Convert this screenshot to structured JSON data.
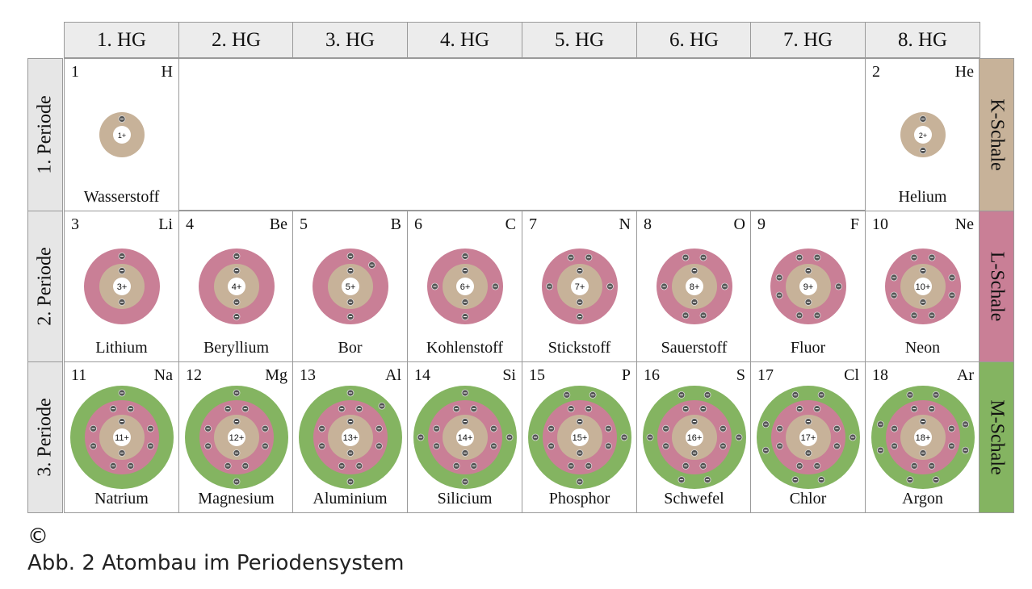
{
  "groups": [
    "1. HG",
    "2. HG",
    "3. HG",
    "4. HG",
    "5. HG",
    "6. HG",
    "7. HG",
    "8. HG"
  ],
  "periods": [
    "1. Periode",
    "2. Periode",
    "3. Periode"
  ],
  "shells": [
    {
      "label": "K-Schale",
      "color": "#c7b299"
    },
    {
      "label": "L-Schale",
      "color": "#c97f96"
    },
    {
      "label": "M-Schale",
      "color": "#84b461"
    }
  ],
  "elements": [
    {
      "z": 1,
      "symbol": "H",
      "name": "Wasserstoff",
      "period": 1,
      "group": 1,
      "charge": "1+",
      "electrons": [
        1
      ]
    },
    {
      "z": 2,
      "symbol": "He",
      "name": "Helium",
      "period": 1,
      "group": 8,
      "charge": "2+",
      "electrons": [
        2
      ]
    },
    {
      "z": 3,
      "symbol": "Li",
      "name": "Lithium",
      "period": 2,
      "group": 1,
      "charge": "3+",
      "electrons": [
        2,
        1
      ]
    },
    {
      "z": 4,
      "symbol": "Be",
      "name": "Beryllium",
      "period": 2,
      "group": 2,
      "charge": "4+",
      "electrons": [
        2,
        2
      ]
    },
    {
      "z": 5,
      "symbol": "B",
      "name": "Bor",
      "period": 2,
      "group": 3,
      "charge": "5+",
      "electrons": [
        2,
        3
      ]
    },
    {
      "z": 6,
      "symbol": "C",
      "name": "Kohlenstoff",
      "period": 2,
      "group": 4,
      "charge": "6+",
      "electrons": [
        2,
        4
      ]
    },
    {
      "z": 7,
      "symbol": "N",
      "name": "Stickstoff",
      "period": 2,
      "group": 5,
      "charge": "7+",
      "electrons": [
        2,
        5
      ]
    },
    {
      "z": 8,
      "symbol": "O",
      "name": "Sauerstoff",
      "period": 2,
      "group": 6,
      "charge": "8+",
      "electrons": [
        2,
        6
      ]
    },
    {
      "z": 9,
      "symbol": "F",
      "name": "Fluor",
      "period": 2,
      "group": 7,
      "charge": "9+",
      "electrons": [
        2,
        7
      ]
    },
    {
      "z": 10,
      "symbol": "Ne",
      "name": "Neon",
      "period": 2,
      "group": 8,
      "charge": "10+",
      "electrons": [
        2,
        8
      ]
    },
    {
      "z": 11,
      "symbol": "Na",
      "name": "Natrium",
      "period": 3,
      "group": 1,
      "charge": "11+",
      "electrons": [
        2,
        8,
        1
      ]
    },
    {
      "z": 12,
      "symbol": "Mg",
      "name": "Magnesium",
      "period": 3,
      "group": 2,
      "charge": "12+",
      "electrons": [
        2,
        8,
        2
      ]
    },
    {
      "z": 13,
      "symbol": "Al",
      "name": "Aluminium",
      "period": 3,
      "group": 3,
      "charge": "13+",
      "electrons": [
        2,
        8,
        3
      ]
    },
    {
      "z": 14,
      "symbol": "Si",
      "name": "Silicium",
      "period": 3,
      "group": 4,
      "charge": "14+",
      "electrons": [
        2,
        8,
        4
      ]
    },
    {
      "z": 15,
      "symbol": "P",
      "name": "Phosphor",
      "period": 3,
      "group": 5,
      "charge": "15+",
      "electrons": [
        2,
        8,
        5
      ]
    },
    {
      "z": 16,
      "symbol": "S",
      "name": "Schwefel",
      "period": 3,
      "group": 6,
      "charge": "16+",
      "electrons": [
        2,
        8,
        6
      ]
    },
    {
      "z": 17,
      "symbol": "Cl",
      "name": "Chlor",
      "period": 3,
      "group": 7,
      "charge": "17+",
      "electrons": [
        2,
        8,
        7
      ]
    },
    {
      "z": 18,
      "symbol": "Ar",
      "name": "Argon",
      "period": 3,
      "group": 8,
      "charge": "18+",
      "electrons": [
        2,
        8,
        8
      ]
    }
  ],
  "colors": {
    "nucleus": "#ffffff",
    "electron": "#555555",
    "border": "#9a9a9a",
    "header_bg": "#ececec"
  },
  "copyright_icon": "copyright-icon",
  "copyright_symbol": "©",
  "caption": "Abb. 2 Atombau im Periodensystem"
}
